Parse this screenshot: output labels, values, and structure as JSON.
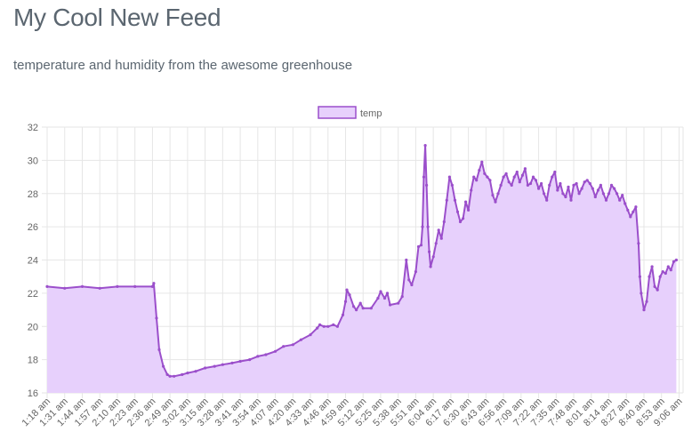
{
  "header": {
    "title": "My Cool New Feed",
    "subtitle": "temperature and humidity from the awesome greenhouse"
  },
  "chart_data": {
    "type": "area",
    "legend": {
      "label": "temp",
      "position": "top-center"
    },
    "colors": {
      "line": "#9b4fcb",
      "fill": "#e7d0fc",
      "grid": "#e6e6e6",
      "tick_text": "#666666"
    },
    "ylim": [
      16,
      32
    ],
    "y_ticks": [
      16,
      18,
      20,
      22,
      24,
      26,
      28,
      30,
      32
    ],
    "grid": true,
    "x_tick_labels": [
      "1:18 am",
      "1:31 am",
      "1:44 am",
      "1:57 am",
      "2:10 am",
      "2:23 am",
      "2:36 am",
      "2:49 am",
      "3:02 am",
      "3:15 am",
      "3:28 am",
      "3:41 am",
      "3:54 am",
      "4:07 am",
      "4:20 am",
      "4:33 am",
      "4:46 am",
      "4:59 am",
      "5:12 am",
      "5:25 am",
      "5:38 am",
      "5:51 am",
      "6:04 am",
      "6:17 am",
      "6:30 am",
      "6:43 am",
      "6:56 am",
      "7:09 am",
      "7:22 am",
      "7:35 am",
      "7:48 am",
      "8:01 am",
      "8:14 am",
      "8:27 am",
      "8:40 am",
      "8:53 am",
      "9:06 am"
    ],
    "x_start": "1:18 am",
    "x_end": "9:09 am",
    "series": [
      {
        "name": "temp",
        "points": [
          [
            "1:18 am",
            22.4
          ],
          [
            "1:31 am",
            22.3
          ],
          [
            "1:44 am",
            22.4
          ],
          [
            "1:57 am",
            22.3
          ],
          [
            "2:10 am",
            22.4
          ],
          [
            "2:23 am",
            22.4
          ],
          [
            "2:36 am",
            22.4
          ],
          [
            "2:37 am",
            22.6
          ],
          [
            "2:39 am",
            20.5
          ],
          [
            "2:41 am",
            18.6
          ],
          [
            "2:44 am",
            17.6
          ],
          [
            "2:47 am",
            17.1
          ],
          [
            "2:49 am",
            17.0
          ],
          [
            "2:52 am",
            17.0
          ],
          [
            "2:58 am",
            17.1
          ],
          [
            "3:02 am",
            17.2
          ],
          [
            "3:08 am",
            17.3
          ],
          [
            "3:15 am",
            17.5
          ],
          [
            "3:22 am",
            17.6
          ],
          [
            "3:28 am",
            17.7
          ],
          [
            "3:35 am",
            17.8
          ],
          [
            "3:41 am",
            17.9
          ],
          [
            "3:48 am",
            18.0
          ],
          [
            "3:54 am",
            18.2
          ],
          [
            "4:00 am",
            18.3
          ],
          [
            "4:07 am",
            18.5
          ],
          [
            "4:13 am",
            18.8
          ],
          [
            "4:20 am",
            18.9
          ],
          [
            "4:26 am",
            19.2
          ],
          [
            "4:33 am",
            19.5
          ],
          [
            "4:38 am",
            19.9
          ],
          [
            "4:40 am",
            20.1
          ],
          [
            "4:43 am",
            20.0
          ],
          [
            "4:46 am",
            20.0
          ],
          [
            "4:50 am",
            20.1
          ],
          [
            "4:53 am",
            20.0
          ],
          [
            "4:57 am",
            20.7
          ],
          [
            "4:59 am",
            21.5
          ],
          [
            "5:00 am",
            22.2
          ],
          [
            "5:02 am",
            21.9
          ],
          [
            "5:05 am",
            21.2
          ],
          [
            "5:07 am",
            21.0
          ],
          [
            "5:10 am",
            21.4
          ],
          [
            "5:12 am",
            21.1
          ],
          [
            "5:18 am",
            21.1
          ],
          [
            "5:23 am",
            21.7
          ],
          [
            "5:25 am",
            22.1
          ],
          [
            "5:28 am",
            21.7
          ],
          [
            "5:30 am",
            22.0
          ],
          [
            "5:32 am",
            21.3
          ],
          [
            "5:38 am",
            21.4
          ],
          [
            "5:41 am",
            21.8
          ],
          [
            "5:44 am",
            24.0
          ],
          [
            "5:46 am",
            22.8
          ],
          [
            "5:48 am",
            22.5
          ],
          [
            "5:51 am",
            23.3
          ],
          [
            "5:53 am",
            24.8
          ],
          [
            "5:55 am",
            24.9
          ],
          [
            "5:56 am",
            26.0
          ],
          [
            "5:57 am",
            29.0
          ],
          [
            "5:58 am",
            30.9
          ],
          [
            "5:59 am",
            28.5
          ],
          [
            "6:00 am",
            26.0
          ],
          [
            "6:01 am",
            24.5
          ],
          [
            "6:02 am",
            23.6
          ],
          [
            "6:04 am",
            24.2
          ],
          [
            "6:06 am",
            25.0
          ],
          [
            "6:08 am",
            25.8
          ],
          [
            "6:10 am",
            25.3
          ],
          [
            "6:12 am",
            26.3
          ],
          [
            "6:14 am",
            27.6
          ],
          [
            "6:16 am",
            29.0
          ],
          [
            "6:18 am",
            28.5
          ],
          [
            "6:20 am",
            27.6
          ],
          [
            "6:22 am",
            26.9
          ],
          [
            "6:24 am",
            26.3
          ],
          [
            "6:26 am",
            26.5
          ],
          [
            "6:28 am",
            27.5
          ],
          [
            "6:30 am",
            27.0
          ],
          [
            "6:32 am",
            28.2
          ],
          [
            "6:34 am",
            29.0
          ],
          [
            "6:36 am",
            28.8
          ],
          [
            "6:38 am",
            29.4
          ],
          [
            "6:40 am",
            29.9
          ],
          [
            "6:42 am",
            29.2
          ],
          [
            "6:44 am",
            29.0
          ],
          [
            "6:46 am",
            28.8
          ],
          [
            "6:48 am",
            27.9
          ],
          [
            "6:50 am",
            27.5
          ],
          [
            "6:52 am",
            28.0
          ],
          [
            "6:54 am",
            28.5
          ],
          [
            "6:56 am",
            29.0
          ],
          [
            "6:58 am",
            29.2
          ],
          [
            "7:00 am",
            28.7
          ],
          [
            "7:02 am",
            28.5
          ],
          [
            "7:04 am",
            29.0
          ],
          [
            "7:06 am",
            29.3
          ],
          [
            "7:08 am",
            28.7
          ],
          [
            "7:10 am",
            29.1
          ],
          [
            "7:12 am",
            29.5
          ],
          [
            "7:14 am",
            28.5
          ],
          [
            "7:16 am",
            28.6
          ],
          [
            "7:18 am",
            29.0
          ],
          [
            "7:20 am",
            28.8
          ],
          [
            "7:22 am",
            28.3
          ],
          [
            "7:24 am",
            28.6
          ],
          [
            "7:26 am",
            28.0
          ],
          [
            "7:28 am",
            27.6
          ],
          [
            "7:30 am",
            28.5
          ],
          [
            "7:32 am",
            29.0
          ],
          [
            "7:34 am",
            29.3
          ],
          [
            "7:36 am",
            28.2
          ],
          [
            "7:38 am",
            28.6
          ],
          [
            "7:40 am",
            28.0
          ],
          [
            "7:42 am",
            27.8
          ],
          [
            "7:44 am",
            28.4
          ],
          [
            "7:46 am",
            27.6
          ],
          [
            "7:48 am",
            28.5
          ],
          [
            "7:50 am",
            28.6
          ],
          [
            "7:52 am",
            28.0
          ],
          [
            "7:54 am",
            28.3
          ],
          [
            "7:56 am",
            28.7
          ],
          [
            "7:58 am",
            28.8
          ],
          [
            "8:00 am",
            28.6
          ],
          [
            "8:02 am",
            28.3
          ],
          [
            "8:04 am",
            27.8
          ],
          [
            "8:06 am",
            28.2
          ],
          [
            "8:08 am",
            28.5
          ],
          [
            "8:10 am",
            28.0
          ],
          [
            "8:12 am",
            27.6
          ],
          [
            "8:14 am",
            28.0
          ],
          [
            "8:16 am",
            28.5
          ],
          [
            "8:18 am",
            28.3
          ],
          [
            "8:20 am",
            28.0
          ],
          [
            "8:22 am",
            27.6
          ],
          [
            "8:24 am",
            27.9
          ],
          [
            "8:26 am",
            27.4
          ],
          [
            "8:28 am",
            27.0
          ],
          [
            "8:30 am",
            26.6
          ],
          [
            "8:32 am",
            26.9
          ],
          [
            "8:34 am",
            27.2
          ],
          [
            "8:36 am",
            25.0
          ],
          [
            "8:37 am",
            23.0
          ],
          [
            "8:38 am",
            22.0
          ],
          [
            "8:40 am",
            21.0
          ],
          [
            "8:42 am",
            21.5
          ],
          [
            "8:44 am",
            23.0
          ],
          [
            "8:46 am",
            23.6
          ],
          [
            "8:48 am",
            22.4
          ],
          [
            "8:50 am",
            22.2
          ],
          [
            "8:52 am",
            23.0
          ],
          [
            "8:54 am",
            23.3
          ],
          [
            "8:56 am",
            23.2
          ],
          [
            "8:58 am",
            23.6
          ],
          [
            "9:00 am",
            23.4
          ],
          [
            "9:02 am",
            23.9
          ],
          [
            "9:04 am",
            24.0
          ]
        ]
      }
    ]
  }
}
